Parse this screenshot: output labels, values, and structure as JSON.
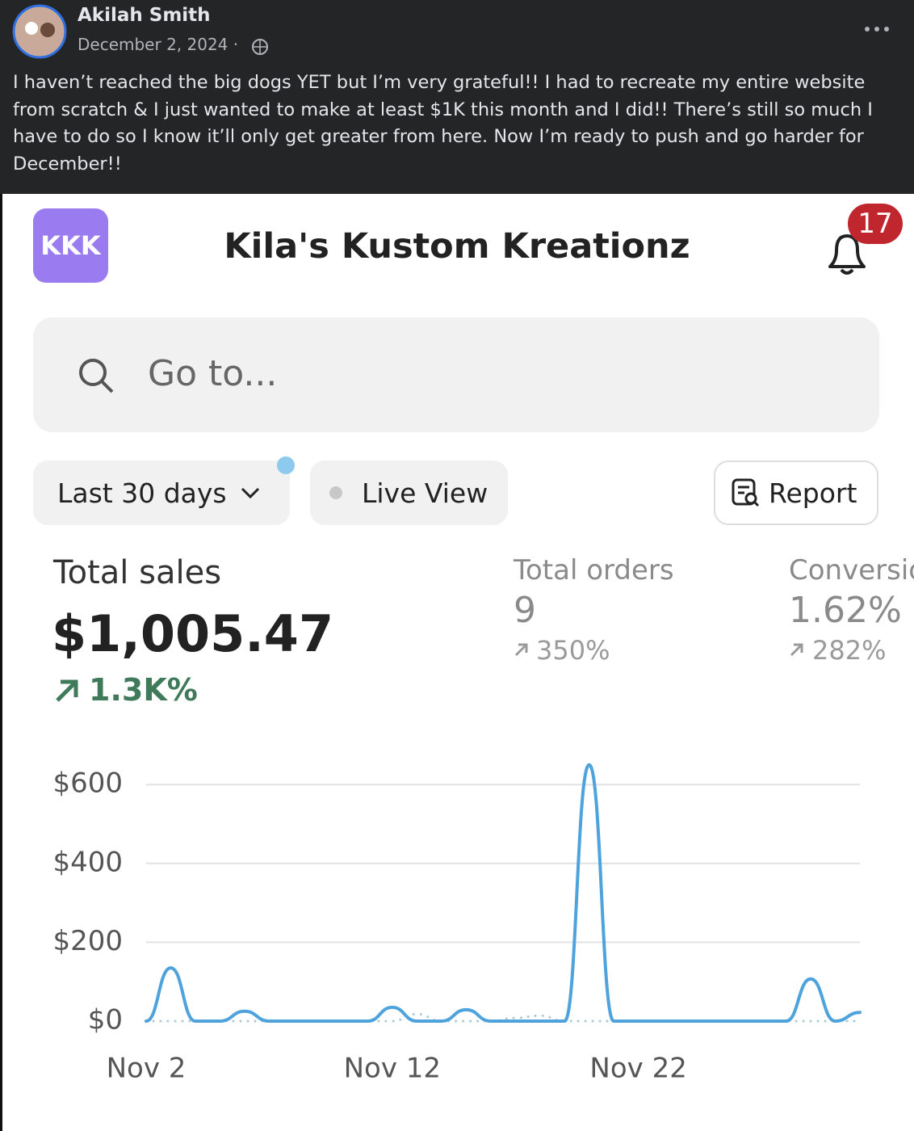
{
  "post": {
    "author": "Akilah Smith",
    "date": "December 2, 2024 ·",
    "text": "I haven’t reached the big dogs YET but I’m very grateful!! I had to recreate my entire website from scratch & I just wanted to make at least $1K this month and I did!! There’s still so much I have to do so I know it’ll only get greater from here. Now I’m ready to push and go harder for December!!"
  },
  "app": {
    "logo": "KKK",
    "title": "Kila's Kustom Kreationz",
    "notification_count": "17",
    "search_placeholder": "Go to...",
    "range_button": "Last 30 days",
    "live_view": "Live View",
    "report": "Report"
  },
  "metrics": [
    {
      "label": "Total sales",
      "value": "$1,005.47",
      "change": "1.3K%"
    },
    {
      "label": "Total orders",
      "value": "9",
      "change": "350%"
    },
    {
      "label": "Conversion rate",
      "value": "1.62%",
      "change": "282%"
    }
  ],
  "chart_data": {
    "type": "line",
    "categories": [
      "Nov 2",
      null,
      null,
      null,
      null,
      null,
      null,
      null,
      null,
      null,
      "Nov 12",
      null,
      null,
      null,
      null,
      null,
      null,
      null,
      null,
      null,
      "Nov 22",
      null,
      null,
      null,
      null,
      null,
      null,
      null,
      null,
      null
    ],
    "series": [
      {
        "color": "#4ea3dc",
        "style": "solid",
        "values": [
          0,
          135,
          0,
          0,
          25,
          0,
          0,
          0,
          0,
          0,
          35,
          0,
          0,
          29,
          0,
          0,
          0,
          0,
          650,
          0,
          0,
          0,
          0,
          0,
          0,
          0,
          0,
          107,
          0,
          22
        ]
      },
      {
        "color": "#a9c9d6",
        "style": "dotted",
        "values": [
          0,
          0,
          0,
          0,
          0,
          0,
          0,
          0,
          0,
          0,
          0,
          18,
          0,
          0,
          0,
          8,
          14,
          0,
          0,
          0,
          0,
          0,
          0,
          0,
          0,
          0,
          0,
          0,
          0,
          0
        ]
      }
    ],
    "ylim": [
      0,
      660
    ],
    "yticks": [
      {
        "value": 0,
        "label": "$0"
      },
      {
        "value": 200,
        "label": "$200"
      },
      {
        "value": 400,
        "label": "$400"
      },
      {
        "value": 600,
        "label": "$600"
      }
    ],
    "grid": true
  }
}
